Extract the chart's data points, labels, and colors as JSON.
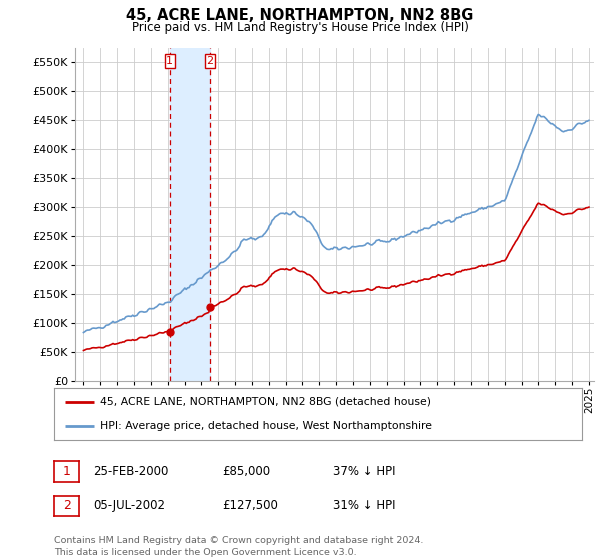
{
  "title": "45, ACRE LANE, NORTHAMPTON, NN2 8BG",
  "subtitle": "Price paid vs. HM Land Registry's House Price Index (HPI)",
  "legend_line1": "45, ACRE LANE, NORTHAMPTON, NN2 8BG (detached house)",
  "legend_line2": "HPI: Average price, detached house, West Northamptonshire",
  "transaction1_date": "25-FEB-2000",
  "transaction1_price": "£85,000",
  "transaction1_hpi": "37% ↓ HPI",
  "transaction2_date": "05-JUL-2002",
  "transaction2_price": "£127,500",
  "transaction2_hpi": "31% ↓ HPI",
  "footer": "Contains HM Land Registry data © Crown copyright and database right 2024.\nThis data is licensed under the Open Government Licence v3.0.",
  "red_line_color": "#cc0000",
  "blue_line_color": "#6699cc",
  "bg_color": "#ffffff",
  "grid_color": "#cccccc",
  "highlight_color": "#ddeeff",
  "ylim_min": 0,
  "ylim_max": 575000,
  "transaction1_x": 2000.12,
  "transaction1_y": 85000,
  "transaction2_x": 2002.5,
  "transaction2_y": 127500,
  "yticks": [
    0,
    50000,
    100000,
    150000,
    200000,
    250000,
    300000,
    350000,
    400000,
    450000,
    500000,
    550000
  ],
  "xlim_min": 1994.5,
  "xlim_max": 2025.3
}
